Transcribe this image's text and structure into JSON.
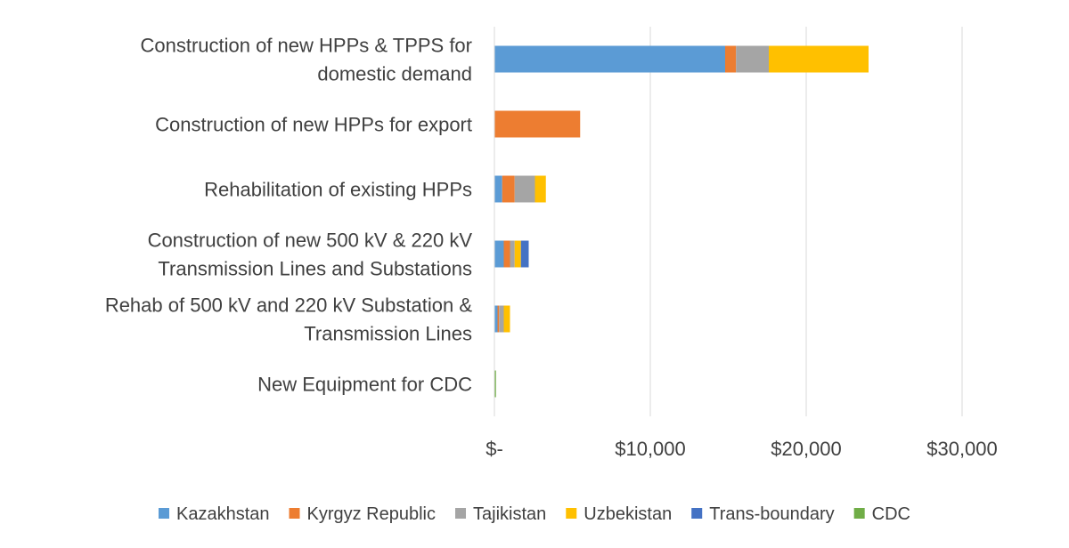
{
  "chart_data": {
    "type": "bar",
    "orientation": "horizontal",
    "stacked": true,
    "title": "",
    "xlabel": "",
    "ylabel": "",
    "categories": [
      [
        "Construction of new HPPs & TPPS for",
        "domestic demand"
      ],
      [
        "Construction of new HPPs for export"
      ],
      [
        "Rehabilitation of existing HPPs"
      ],
      [
        "Construction of new 500 kV & 220 kV",
        "Transmission Lines and Substations"
      ],
      [
        "Rehab of 500 kV and 220 kV Substation &",
        "Transmission Lines"
      ],
      [
        "New Equipment for CDC"
      ]
    ],
    "series": [
      {
        "name": "Kazakhstan",
        "color": "#5B9BD5",
        "values": [
          14800,
          0,
          500,
          600,
          200,
          0
        ]
      },
      {
        "name": "Kyrgyz Republic",
        "color": "#ED7D31",
        "values": [
          700,
          5500,
          800,
          400,
          100,
          0
        ]
      },
      {
        "name": "Tajikistan",
        "color": "#A5A5A5",
        "values": [
          2100,
          0,
          1300,
          300,
          300,
          0
        ]
      },
      {
        "name": "Uzbekistan",
        "color": "#FFC000",
        "values": [
          6400,
          0,
          700,
          400,
          400,
          0
        ]
      },
      {
        "name": "Trans-boundary",
        "color": "#4472C4",
        "values": [
          0,
          0,
          0,
          500,
          0,
          0
        ]
      },
      {
        "name": "CDC",
        "color": "#70AD47",
        "values": [
          0,
          0,
          0,
          0,
          0,
          100
        ]
      }
    ],
    "xlim": [
      0,
      30000
    ],
    "x_ticks": [
      0,
      10000,
      20000,
      30000
    ],
    "x_tick_labels": [
      "$-",
      "$10,000",
      "$20,000",
      "$30,000"
    ],
    "grid": "vertical",
    "legend_position": "bottom"
  }
}
